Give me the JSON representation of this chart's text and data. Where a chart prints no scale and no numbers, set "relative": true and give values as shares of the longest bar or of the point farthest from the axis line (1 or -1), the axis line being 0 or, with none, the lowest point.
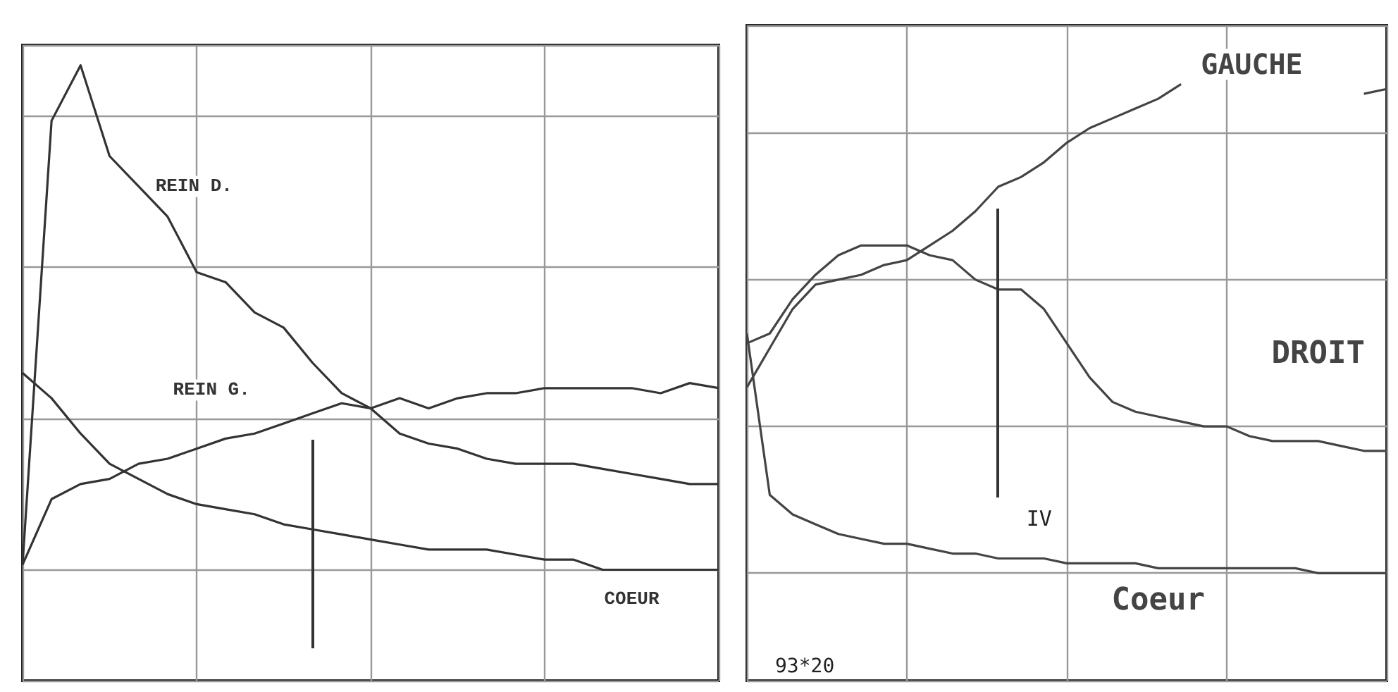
{
  "chart_data": [
    {
      "type": "line",
      "relative": true,
      "grid": true,
      "legend": false,
      "marker": "none",
      "line_style": "solid",
      "categories": [
        null,
        null,
        null,
        null,
        null,
        null,
        null,
        null,
        null,
        null,
        null,
        null,
        null,
        null,
        null,
        null,
        null,
        null,
        null,
        null,
        null,
        null,
        null,
        null,
        null
      ],
      "series": [
        {
          "name": "REIN D.",
          "color": "#333333",
          "values": [
            0.01,
            0.89,
            1.0,
            0.82,
            0.76,
            0.7,
            0.59,
            0.57,
            0.51,
            0.48,
            0.41,
            0.35,
            0.32,
            0.27,
            0.25,
            0.24,
            0.22,
            0.21,
            0.21,
            0.21,
            0.2,
            0.19,
            0.18,
            0.17,
            0.17
          ]
        },
        {
          "name": "REIN G.",
          "color": "#333333",
          "values": [
            0.01,
            0.14,
            0.17,
            0.18,
            0.21,
            0.22,
            0.24,
            0.26,
            0.27,
            0.29,
            0.31,
            0.33,
            0.32,
            0.34,
            0.32,
            0.34,
            0.35,
            0.35,
            0.36,
            0.36,
            0.36,
            0.36,
            0.35,
            0.37,
            0.36
          ]
        },
        {
          "name": "COEUR",
          "color": "#333333",
          "values": [
            0.39,
            0.34,
            0.27,
            0.21,
            0.18,
            0.15,
            0.13,
            0.12,
            0.11,
            0.09,
            0.08,
            0.07,
            0.06,
            0.05,
            0.04,
            0.04,
            0.04,
            0.03,
            0.02,
            0.02,
            0.0,
            0.0,
            0.0,
            0.0,
            0.0
          ]
        }
      ]
    },
    {
      "type": "line",
      "relative": true,
      "grid": true,
      "legend": false,
      "marker": "none",
      "line_style": "solid",
      "categories": [
        null,
        null,
        null,
        null,
        null,
        null,
        null,
        null,
        null,
        null,
        null,
        null,
        null,
        null,
        null,
        null,
        null,
        null,
        null,
        null,
        null,
        null,
        null,
        null,
        null,
        null,
        null,
        null,
        null
      ],
      "series": [
        {
          "name": "GAUCHE",
          "color": "#444444",
          "values": [
            0.38,
            0.46,
            0.54,
            0.59,
            0.6,
            0.61,
            0.63,
            0.64,
            0.67,
            0.7,
            0.74,
            0.79,
            0.81,
            0.84,
            0.88,
            0.91,
            0.93,
            0.95,
            0.97,
            1.0,
            null,
            null,
            null,
            null,
            null,
            null,
            null,
            0.98,
            0.99
          ]
        },
        {
          "name": "DROIT",
          "color": "#444444",
          "values": [
            0.47,
            0.49,
            0.56,
            0.61,
            0.65,
            0.67,
            0.67,
            0.67,
            0.65,
            0.64,
            0.6,
            0.58,
            0.58,
            0.54,
            0.47,
            0.4,
            0.35,
            0.33,
            0.32,
            0.31,
            0.3,
            0.3,
            0.28,
            0.27,
            0.27,
            0.27,
            0.26,
            0.25,
            0.25
          ]
        },
        {
          "name": "Coeur",
          "color": "#444444",
          "values": [
            0.49,
            0.16,
            0.12,
            0.1,
            0.08,
            0.07,
            0.06,
            0.06,
            0.05,
            0.04,
            0.04,
            0.03,
            0.03,
            0.03,
            0.02,
            0.02,
            0.02,
            0.02,
            0.01,
            0.01,
            0.01,
            0.01,
            0.01,
            0.01,
            0.01,
            0.0,
            0.0,
            0.0,
            0.0
          ]
        }
      ],
      "annotations": [
        "IV",
        "93*20"
      ]
    }
  ]
}
